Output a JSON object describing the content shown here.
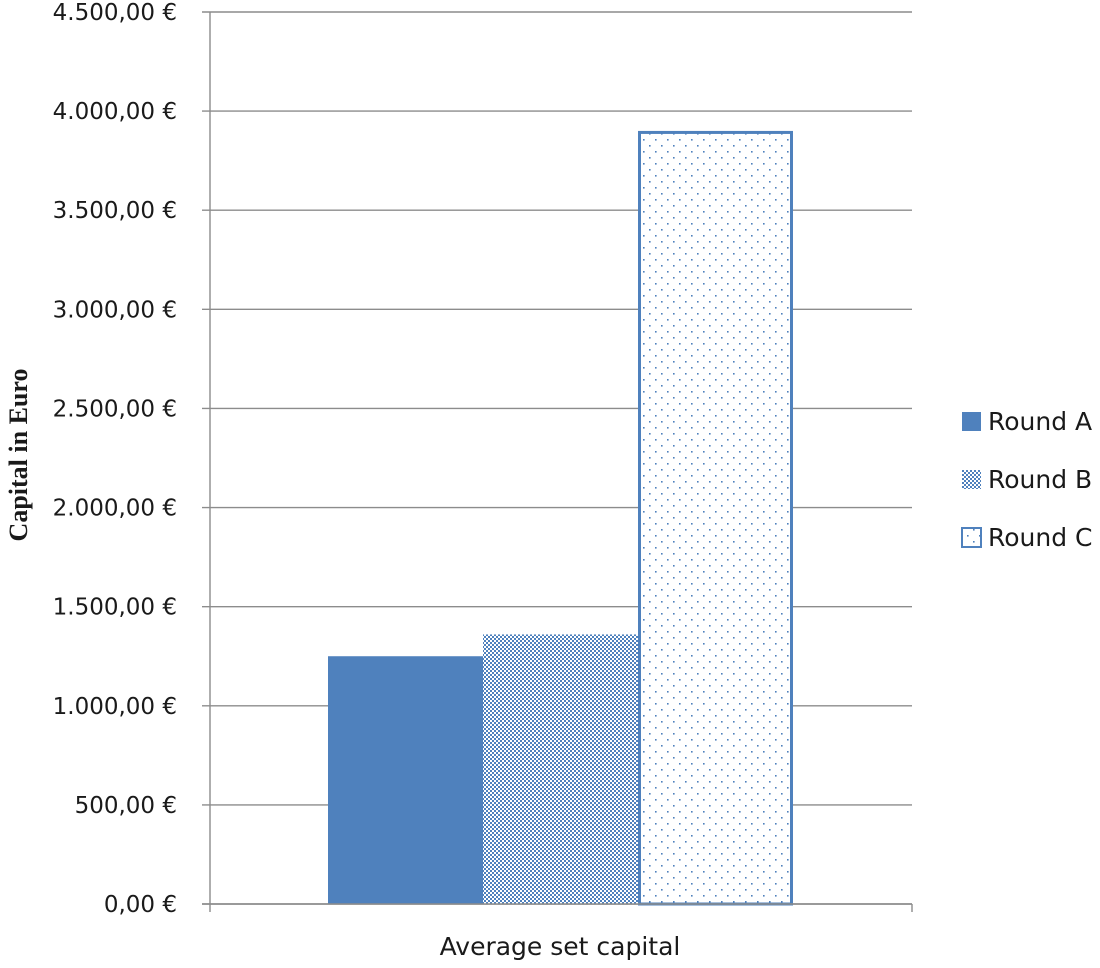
{
  "chart_data": {
    "type": "bar",
    "categories": [
      "Average set capital"
    ],
    "series": [
      {
        "name": "Round A",
        "values": [
          1250
        ],
        "color": "#4f81bd",
        "fill": "solid"
      },
      {
        "name": "Round B",
        "values": [
          1360
        ],
        "color": "#4f81bd",
        "fill": "dense-dots"
      },
      {
        "name": "Round C",
        "values": [
          3900
        ],
        "color": "#4f81bd",
        "fill": "sparse-dots"
      }
    ],
    "ylabel": "Capital in Euro",
    "xlabel": "",
    "ylim": [
      0,
      4500
    ],
    "yticks": [
      0,
      500,
      1000,
      1500,
      2000,
      2500,
      3000,
      3500,
      4000,
      4500
    ],
    "ytick_labels": [
      "0,00 €",
      "500,00 €",
      "1.000,00 €",
      "1.500,00 €",
      "2.000,00 €",
      "2.500,00 €",
      "3.000,00 €",
      "3.500,00 €",
      "4.000,00 €",
      "4.500,00 €"
    ],
    "grid": true,
    "legend_position": "right"
  }
}
